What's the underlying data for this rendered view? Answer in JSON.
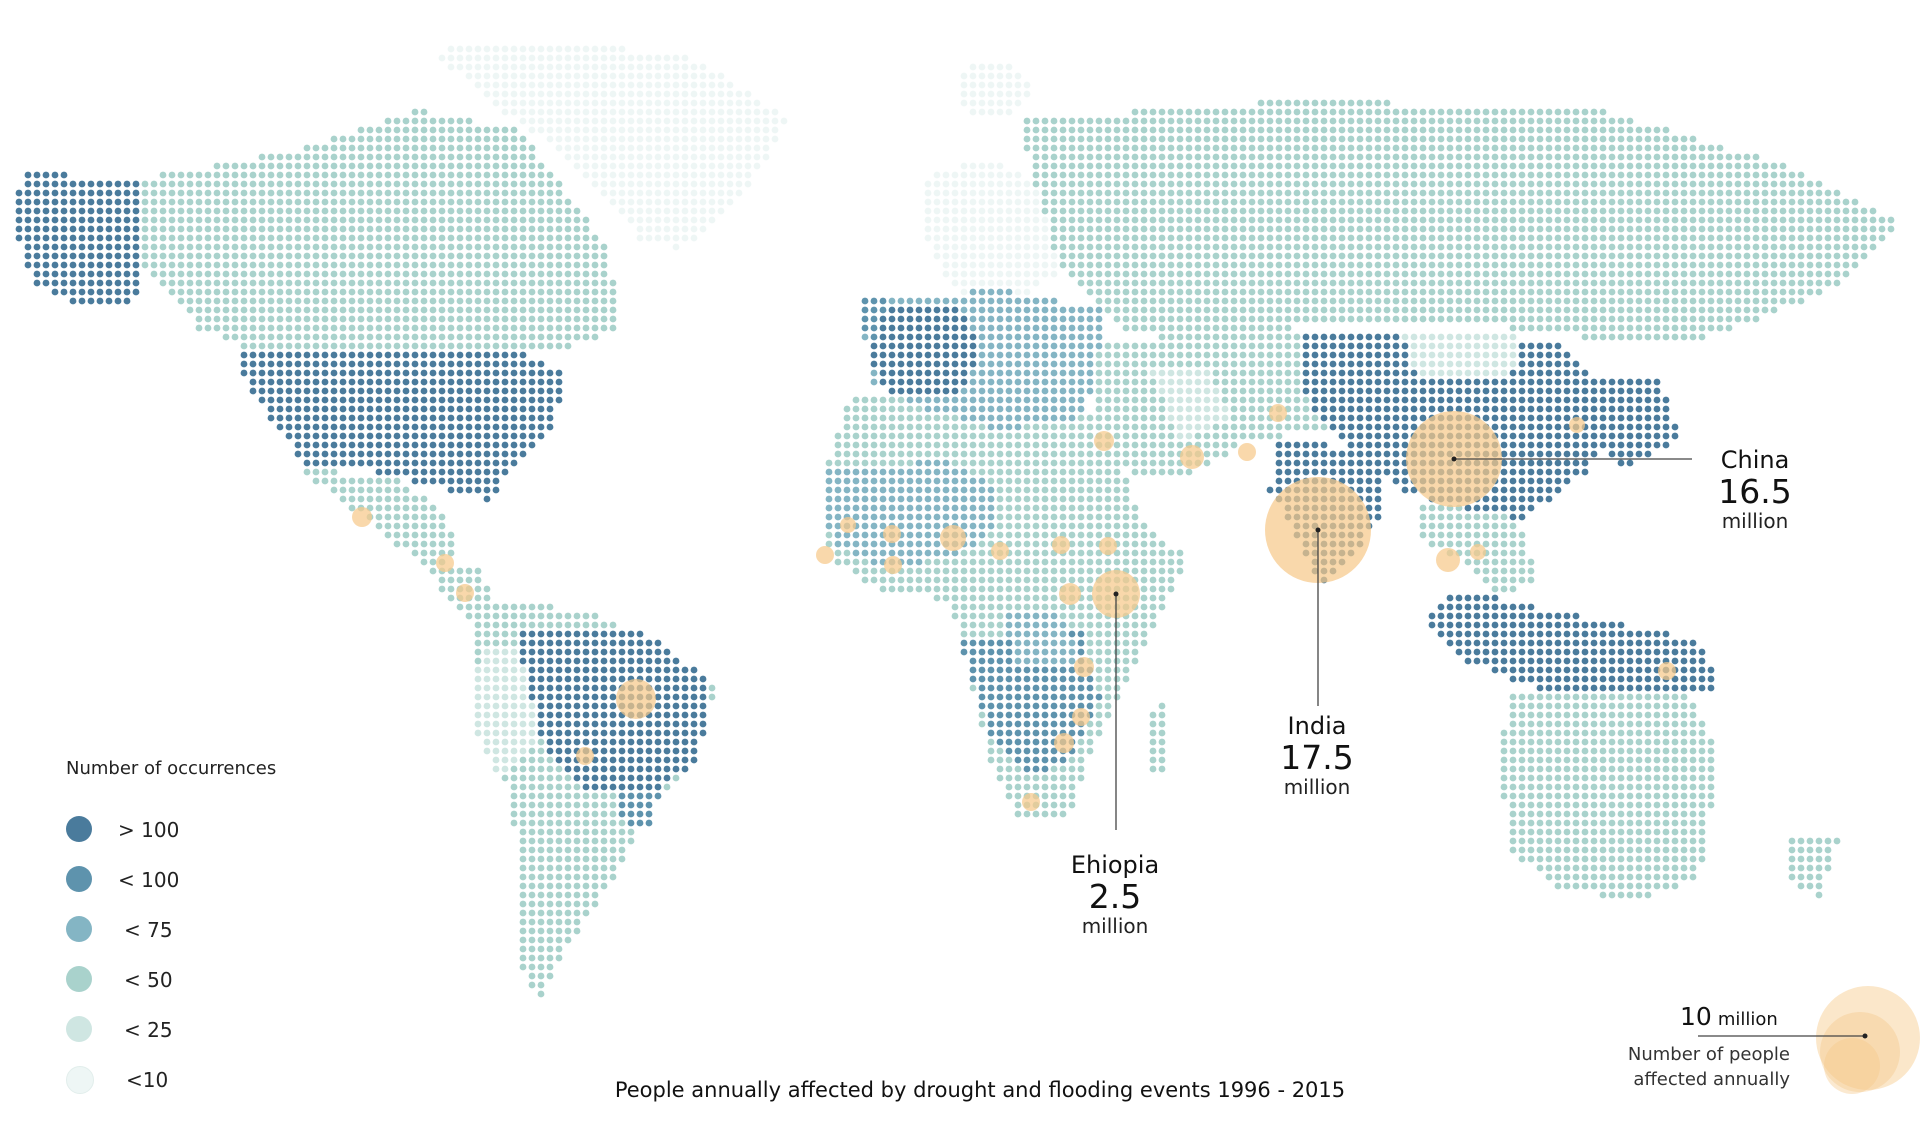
{
  "title": "People annually affected by drought and flooding events 1996 - 2015",
  "colors": {
    "lt10": "#eef6f5",
    "lt25": "#cfe6e2",
    "lt50": "#a9d2cc",
    "lt75": "#84b5c4",
    "lt100": "#5e93ad",
    "gt100": "#4a7b9c",
    "bubble": "#f6c98a",
    "leader": "#444444"
  },
  "legend": {
    "title": "Number of occurrences",
    "items": [
      {
        "label": "> 100",
        "color": "#4a7b9c"
      },
      {
        "label": "< 100",
        "color": "#5e93ad"
      },
      {
        "label": "< 75",
        "color": "#84b5c4"
      },
      {
        "label": "< 50",
        "color": "#a9d2cc"
      },
      {
        "label": "< 25",
        "color": "#cfe6e2"
      },
      {
        "label": "<10",
        "color": "#eef6f5"
      }
    ]
  },
  "callouts": [
    {
      "name": "China",
      "value": "16.5",
      "unit": "million"
    },
    {
      "name": "India",
      "value": "17.5",
      "unit": "million"
    },
    {
      "name": "Ehiopia",
      "value": "2.5",
      "unit": "million"
    }
  ],
  "size_legend": {
    "value": "10",
    "unit": "million",
    "label_line1": "Number of people",
    "label_line2": "affected annually"
  }
}
